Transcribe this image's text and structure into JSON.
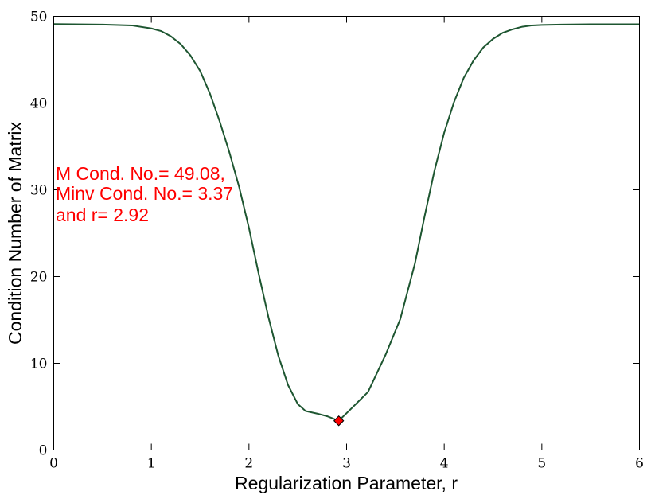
{
  "chart_data": {
    "type": "line",
    "xlabel": "Regularization Parameter, r",
    "ylabel": "Condition Number of Matrix",
    "xlim": [
      0,
      6
    ],
    "ylim": [
      0,
      50
    ],
    "xticks": [
      0,
      1,
      2,
      3,
      4,
      5,
      6
    ],
    "yticks": [
      0,
      10,
      20,
      30,
      40,
      50
    ],
    "grid": false,
    "line_color": "#1e5631",
    "marker_color": "#ff0000",
    "annotation_color": "#ff0000",
    "series": [
      {
        "x": [
          0,
          0.5,
          0.8,
          1.0,
          1.1,
          1.2,
          1.3,
          1.4,
          1.5,
          1.6,
          1.7,
          1.8,
          1.9,
          2.0,
          2.1,
          2.2,
          2.3,
          2.4,
          2.5,
          2.58,
          2.7,
          2.8,
          2.92,
          3.05,
          3.22,
          3.4,
          3.55,
          3.7,
          3.8,
          3.9,
          4.0,
          4.1,
          4.2,
          4.3,
          4.4,
          4.5,
          4.6,
          4.7,
          4.8,
          4.9,
          5.0,
          5.2,
          5.5,
          6.0
        ],
        "y": [
          49.1,
          49.05,
          48.95,
          48.6,
          48.3,
          47.7,
          46.8,
          45.5,
          43.7,
          41.1,
          37.9,
          34.3,
          30.3,
          25.6,
          20.3,
          15.3,
          10.9,
          7.5,
          5.3,
          4.5,
          4.2,
          3.9,
          3.37,
          4.8,
          6.7,
          11.0,
          15.1,
          21.5,
          27.0,
          32.2,
          36.6,
          40.1,
          42.9,
          44.9,
          46.4,
          47.4,
          48.1,
          48.5,
          48.8,
          48.95,
          49.0,
          49.05,
          49.08,
          49.08
        ]
      }
    ],
    "marker": {
      "x": 2.92,
      "y": 3.37
    },
    "annotation": [
      "M Cond. No.= 49.08,",
      "Minv Cond. No.= 3.37",
      "and r= 2.92"
    ]
  }
}
